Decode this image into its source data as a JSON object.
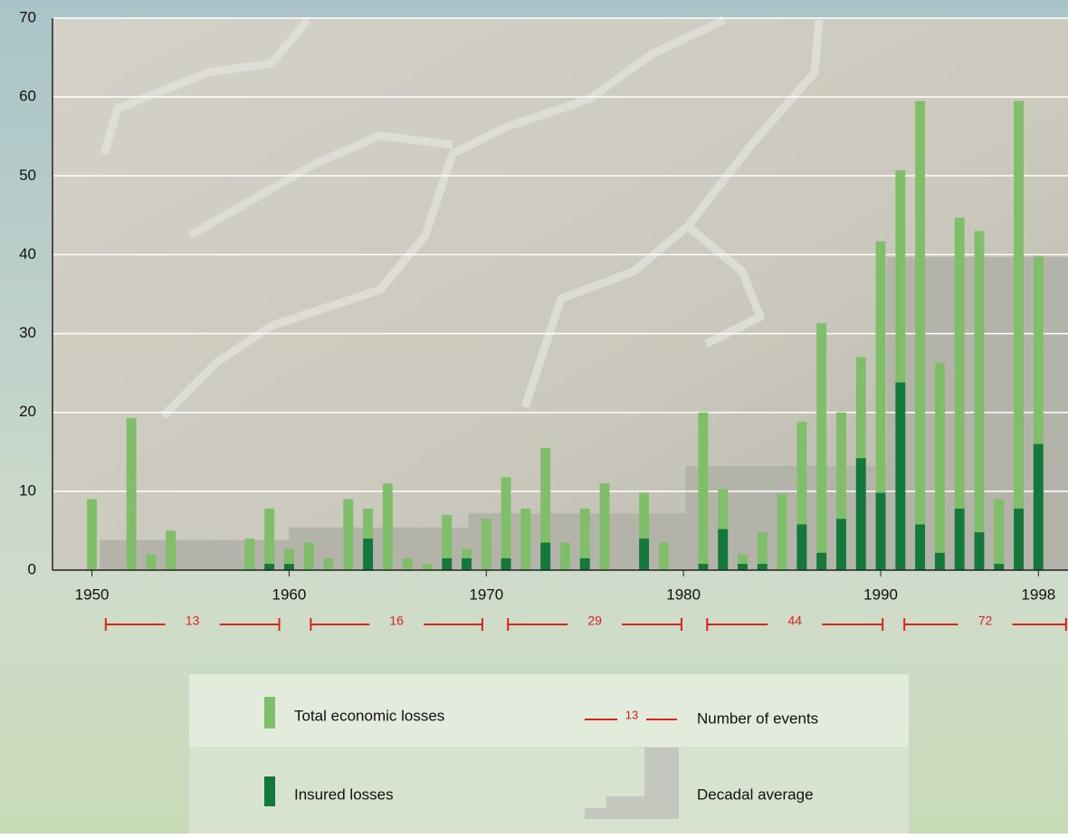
{
  "chart_data": {
    "type": "bar",
    "x": [
      1950,
      1951,
      1952,
      1953,
      1954,
      1955,
      1956,
      1957,
      1958,
      1959,
      1960,
      1961,
      1962,
      1963,
      1964,
      1965,
      1966,
      1967,
      1968,
      1969,
      1970,
      1971,
      1972,
      1973,
      1974,
      1975,
      1976,
      1977,
      1978,
      1979,
      1980,
      1981,
      1982,
      1983,
      1984,
      1985,
      1986,
      1987,
      1988,
      1989,
      1990,
      1991,
      1992,
      1993,
      1994,
      1995,
      1996,
      1997,
      1998
    ],
    "series": [
      {
        "name": "Total economic losses",
        "color": "#7fbf69",
        "values": [
          9,
          null,
          19.3,
          2,
          5,
          null,
          null,
          null,
          4,
          7.8,
          2.7,
          3.5,
          1.5,
          9,
          7.8,
          11,
          1.5,
          0.8,
          7,
          2.7,
          6.5,
          11.8,
          7.8,
          15.5,
          3.5,
          7.8,
          11,
          null,
          9.8,
          3.5,
          null,
          20,
          10.3,
          2,
          4.8,
          9.7,
          18.8,
          31.3,
          20,
          27,
          41.7,
          50.7,
          59.5,
          26.3,
          44.7,
          43,
          9,
          59.5,
          39.8
        ]
      },
      {
        "name": "Insured losses",
        "color": "#13793b",
        "values": [
          null,
          null,
          null,
          null,
          null,
          null,
          null,
          null,
          null,
          0.8,
          0.8,
          null,
          null,
          null,
          4,
          null,
          null,
          null,
          1.5,
          1.5,
          null,
          1.5,
          null,
          3.5,
          null,
          1.5,
          null,
          null,
          4,
          null,
          null,
          0.8,
          5.2,
          0.8,
          0.8,
          null,
          5.8,
          2.2,
          6.5,
          14.2,
          9.8,
          23.8,
          5.8,
          2.2,
          7.8,
          4.8,
          0.8,
          7.8,
          16
        ]
      }
    ],
    "decadal_average": {
      "name": "Decadal average",
      "color": "#b3b3aa",
      "edges": [
        1950.4,
        1960,
        1969.1,
        1980.1,
        1990.3,
        1999.5
      ],
      "values": [
        3.8,
        5.4,
        7.2,
        13.2,
        39.7
      ]
    },
    "events": {
      "name": "Number of events",
      "color": "#dd2222",
      "values": [
        13,
        16,
        29,
        44,
        72
      ],
      "spans": [
        [
          1950.7,
          1959.5
        ],
        [
          1961.1,
          1969.8
        ],
        [
          1971.1,
          1979.9
        ],
        [
          1981.2,
          1990.1
        ],
        [
          1991.2,
          1999.4
        ]
      ]
    },
    "xlim": [
      1948,
      1999.5
    ],
    "xticks": [
      1950,
      1960,
      1970,
      1980,
      1990,
      1998
    ],
    "ylim": [
      0,
      70
    ],
    "yticks": [
      0,
      10,
      20,
      30,
      40,
      50,
      60,
      70
    ],
    "grid": true
  }
}
